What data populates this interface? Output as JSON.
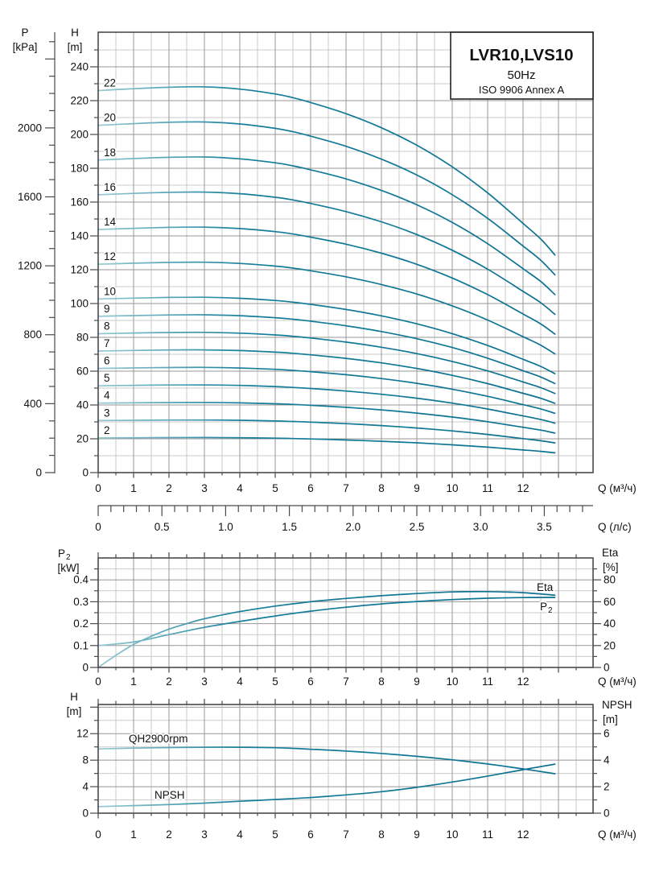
{
  "header": {
    "title": "LVR10,LVS10",
    "frequency": "50Hz",
    "standard": "ISO 9906 Annex A"
  },
  "labels": {
    "p_sym": "P",
    "p_unit": "[kPa]",
    "h_sym": "H",
    "h_unit": "[m]",
    "q_m3h": "Q (м³/ч)",
    "q_ls": "Q (л/с)",
    "p2_sym": "P",
    "p2_sub": "2",
    "p2_unit": "[kW]",
    "eta_sym": "Eta",
    "eta_unit": "[%]",
    "h2_sym": "H",
    "h2_unit": "[m]",
    "npsh_sym": "NPSH",
    "npsh_unit": "[m]",
    "curve_eta": "Eta",
    "curve_p2_sym": "P",
    "curve_p2_sub": "2",
    "curve_qh": "QH2900rpm",
    "curve_npsh": "NPSH"
  },
  "colors": {
    "curve": "#117d99",
    "curve_light": "#96cad2",
    "curve_dark": "#0c7190",
    "grid_minor": "#cbcbcb",
    "grid_major": "#979797",
    "frame": "#4a4a4a"
  },
  "chart_data": [
    {
      "id": "main_qh",
      "type": "line",
      "title": "LVR10,LVS10 50Hz multi-stage QH curves",
      "xlabel": "Q (м³/ч)",
      "x2label": "Q (л/с)",
      "ylabel": "H [m]",
      "y2label": "P [kPa]",
      "xlim": [
        0,
        14
      ],
      "ylim": [
        0,
        260
      ],
      "grid": "major+minor",
      "p_kpa_per_m": 9.81,
      "x2_m3h_per_ls": 3.6,
      "x_ticks_labeled": [
        "0",
        "1",
        "2",
        "3",
        "4",
        "5",
        "6",
        "7",
        "8",
        "9",
        "10",
        "11",
        "12"
      ],
      "x2_ticks_labeled": [
        "0",
        "0.5",
        "1.0",
        "1.5",
        "2.0",
        "2.5",
        "3.0",
        "3.5"
      ],
      "y_ticks_labeled": [
        "240",
        "220",
        "200",
        "180",
        "160",
        "140",
        "120",
        "100",
        "80",
        "60",
        "40",
        "20",
        "0"
      ],
      "y2_ticks_labeled": [
        "2000",
        "1600",
        "1200",
        "800",
        "400",
        "0"
      ],
      "stages": [
        22,
        20,
        18,
        16,
        14,
        12,
        10,
        9,
        8,
        7,
        6,
        5,
        4,
        3,
        2
      ],
      "stage_labels": [
        "22",
        "20",
        "18",
        "16",
        "14",
        "12",
        "10",
        "9",
        "8",
        "7",
        "6",
        "5",
        "4",
        "3",
        "2"
      ],
      "per_stage_head_x": [
        0,
        1,
        2,
        3,
        4,
        5,
        5.5,
        6,
        7,
        8,
        9,
        10,
        11,
        12,
        12.5,
        12.9
      ],
      "per_stage_head_m": [
        10.27,
        10.32,
        10.36,
        10.37,
        10.31,
        10.18,
        10.08,
        9.95,
        9.65,
        9.27,
        8.8,
        8.22,
        7.52,
        6.7,
        6.28,
        5.85
      ],
      "series_rule": "H(Q) = stages × per_stage_head"
    },
    {
      "id": "p2_eta",
      "type": "line",
      "title": "Power and efficiency curves",
      "xlabel": "Q (м³/ч)",
      "ylabel": "P2 [kW]",
      "y2label": "Eta [%]",
      "xlim": [
        0,
        14
      ],
      "ylim": [
        0,
        0.5
      ],
      "y2lim": [
        0,
        100
      ],
      "grid": "major+minor",
      "x_ticks_labeled": [
        "0",
        "1",
        "2",
        "3",
        "4",
        "5",
        "6",
        "7",
        "8",
        "9",
        "10",
        "11",
        "12"
      ],
      "y_ticks_labeled": [
        "0.4",
        "0.3",
        "0.2",
        "0.1",
        "0"
      ],
      "y2_ticks_labeled": [
        "80",
        "60",
        "40",
        "20",
        "0"
      ],
      "series": [
        {
          "name": "P2",
          "axis": "left",
          "x": [
            0,
            1,
            2,
            3,
            4,
            5,
            6,
            7,
            8,
            9,
            10,
            11,
            12,
            12.9
          ],
          "y": [
            0.1,
            0.116,
            0.15,
            0.183,
            0.21,
            0.235,
            0.257,
            0.275,
            0.29,
            0.301,
            0.31,
            0.316,
            0.319,
            0.32
          ]
        },
        {
          "name": "Eta",
          "axis": "right",
          "x": [
            0,
            0.5,
            1,
            1.5,
            2,
            2.5,
            3,
            4,
            5,
            6,
            7,
            8,
            9,
            10,
            11,
            12,
            12.9
          ],
          "y": [
            0,
            11,
            21,
            28.5,
            35,
            40,
            44.5,
            51,
            56,
            60,
            63,
            65.5,
            67.5,
            69,
            69.3,
            68.3,
            66
          ]
        }
      ]
    },
    {
      "id": "qh_npsh",
      "type": "line",
      "title": "Single stage QH at 2900 rpm and NPSH",
      "xlabel": "Q (м³/ч)",
      "ylabel": "H [m]",
      "y2label": "NPSH [m]",
      "xlim": [
        0,
        14
      ],
      "ylim": [
        0,
        16.4
      ],
      "y2lim": [
        0,
        8.2
      ],
      "grid": "major+minor",
      "x_ticks_labeled": [
        "0",
        "1",
        "2",
        "3",
        "4",
        "5",
        "6",
        "7",
        "8",
        "9",
        "10",
        "11",
        "12"
      ],
      "y_ticks_labeled": [
        "12",
        "8",
        "4",
        "0"
      ],
      "y2_ticks_labeled": [
        "6",
        "4",
        "2",
        "0"
      ],
      "series": [
        {
          "name": "QH2900rpm",
          "axis": "left",
          "x": [
            0,
            1,
            2,
            3,
            4,
            5,
            5.5,
            6,
            7,
            8,
            9,
            10,
            11,
            12,
            12.9
          ],
          "y": [
            9.7,
            9.82,
            9.9,
            9.95,
            9.95,
            9.88,
            9.78,
            9.65,
            9.38,
            9.02,
            8.58,
            8.05,
            7.42,
            6.68,
            5.95
          ]
        },
        {
          "name": "NPSH",
          "axis": "right",
          "x": [
            0,
            1,
            2,
            3,
            4,
            5,
            6,
            7,
            8,
            9,
            10,
            11,
            12,
            12.9
          ],
          "y": [
            0.5,
            0.57,
            0.65,
            0.76,
            0.9,
            1.03,
            1.18,
            1.38,
            1.62,
            1.95,
            2.35,
            2.8,
            3.28,
            3.7
          ]
        }
      ]
    }
  ]
}
